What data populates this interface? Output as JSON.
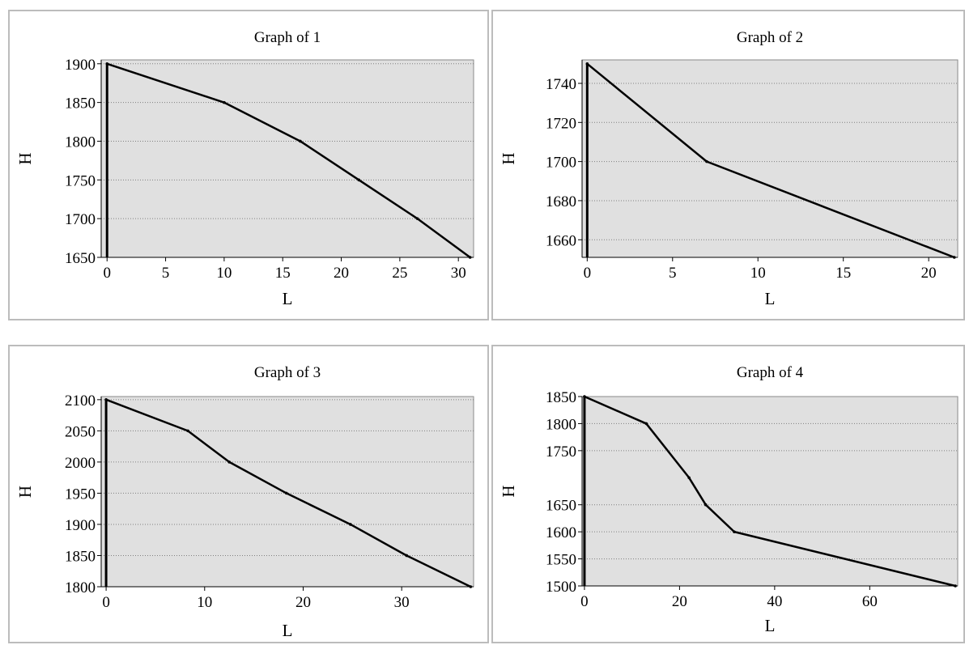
{
  "chart_data": [
    {
      "type": "line",
      "title": "Graph of 1",
      "xlabel": "L",
      "ylabel": "H",
      "xlim": [
        -0.5,
        31.3
      ],
      "ylim": [
        1650,
        1905
      ],
      "xticks": [
        0,
        5,
        10,
        15,
        20,
        25,
        30
      ],
      "yticks": [
        1650,
        1700,
        1750,
        1800,
        1850,
        1900
      ],
      "grid": "horizontal dotted",
      "background": "#e0e0e0",
      "series": [
        {
          "x": [
            0,
            10,
            16.5,
            21.5,
            26.5,
            31
          ],
          "y": [
            1900,
            1850,
            1800,
            1750,
            1700,
            1650
          ]
        }
      ]
    },
    {
      "type": "line",
      "title": "Graph of 2",
      "xlabel": "L",
      "ylabel": "H",
      "xlim": [
        -0.3,
        21.7
      ],
      "ylim": [
        1651,
        1752
      ],
      "xticks": [
        0,
        5,
        10,
        15,
        20
      ],
      "yticks": [
        1660,
        1680,
        1700,
        1720,
        1740
      ],
      "grid": "horizontal dotted",
      "background": "#e0e0e0",
      "series": [
        {
          "x": [
            0,
            7,
            21.5
          ],
          "y": [
            1750,
            1700,
            1651
          ]
        }
      ]
    },
    {
      "type": "line",
      "title": "Graph of 3",
      "xlabel": "L",
      "ylabel": "H",
      "xlim": [
        -0.5,
        37.3
      ],
      "ylim": [
        1800,
        2105
      ],
      "xticks": [
        0,
        10,
        20,
        30
      ],
      "yticks": [
        1800,
        1850,
        1900,
        1950,
        2000,
        2050,
        2100
      ],
      "grid": "horizontal dotted",
      "background": "#e0e0e0",
      "series": [
        {
          "x": [
            0,
            8.3,
            12.5,
            18.3,
            24.8,
            30.5,
            37
          ],
          "y": [
            2100,
            2050,
            2000,
            1950,
            1900,
            1850,
            1800
          ]
        }
      ]
    },
    {
      "type": "line",
      "title": "Graph of 4",
      "xlabel": "L",
      "ylabel": "H",
      "xlim": [
        -0.5,
        78.5
      ],
      "ylim": [
        1500,
        1850
      ],
      "xticks": [
        0,
        20,
        40,
        60
      ],
      "yticks": [
        1500,
        1550,
        1600,
        1650,
        1750,
        1800,
        1850
      ],
      "grid": "horizontal dotted",
      "background": "#e0e0e0",
      "series": [
        {
          "x": [
            0,
            13,
            22,
            25.5,
            31.5,
            78
          ],
          "y": [
            1850,
            1800,
            1700,
            1650,
            1600,
            1500
          ]
        }
      ]
    }
  ]
}
